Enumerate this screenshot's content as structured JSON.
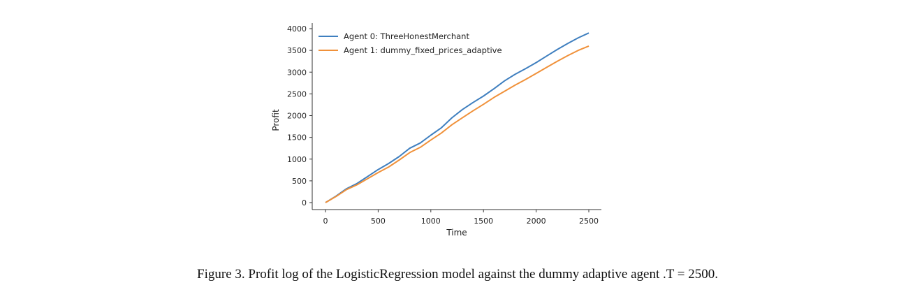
{
  "chart_data": {
    "type": "line",
    "xlabel": "Time",
    "ylabel": "Profit",
    "xlim": [
      0,
      2500
    ],
    "ylim": [
      0,
      4000
    ],
    "xticks": [
      0,
      500,
      1000,
      1500,
      2000,
      2500
    ],
    "yticks": [
      0,
      500,
      1000,
      1500,
      2000,
      2500,
      3000,
      3500,
      4000
    ],
    "grid": false,
    "legend_position": "top-left",
    "series": [
      {
        "name": "Agent 0: ThreeHonestMerchant",
        "color": "#3f7fbf",
        "x": [
          0,
          100,
          200,
          300,
          400,
          500,
          600,
          700,
          800,
          900,
          1000,
          1100,
          1200,
          1300,
          1400,
          1500,
          1600,
          1700,
          1800,
          1900,
          2000,
          2100,
          2200,
          2300,
          2400,
          2500
        ],
        "y": [
          0,
          150,
          320,
          440,
          600,
          760,
          900,
          1060,
          1250,
          1370,
          1550,
          1720,
          1950,
          2140,
          2300,
          2450,
          2620,
          2800,
          2950,
          3080,
          3220,
          3370,
          3520,
          3660,
          3790,
          3900
        ]
      },
      {
        "name": "Agent 1: dummy_fixed_prices_adaptive",
        "color": "#f0913a",
        "x": [
          0,
          100,
          200,
          300,
          400,
          500,
          600,
          700,
          800,
          900,
          1000,
          1100,
          1200,
          1300,
          1400,
          1500,
          1600,
          1700,
          1800,
          1900,
          2000,
          2100,
          2200,
          2300,
          2400,
          2500
        ],
        "y": [
          0,
          140,
          300,
          410,
          550,
          690,
          820,
          980,
          1150,
          1270,
          1440,
          1600,
          1790,
          1950,
          2110,
          2260,
          2420,
          2560,
          2700,
          2830,
          2970,
          3110,
          3250,
          3380,
          3500,
          3600
        ]
      }
    ]
  },
  "caption": "Figure 3. Profit log of the LogisticRegression model against the dummy adaptive agent .T = 2500."
}
